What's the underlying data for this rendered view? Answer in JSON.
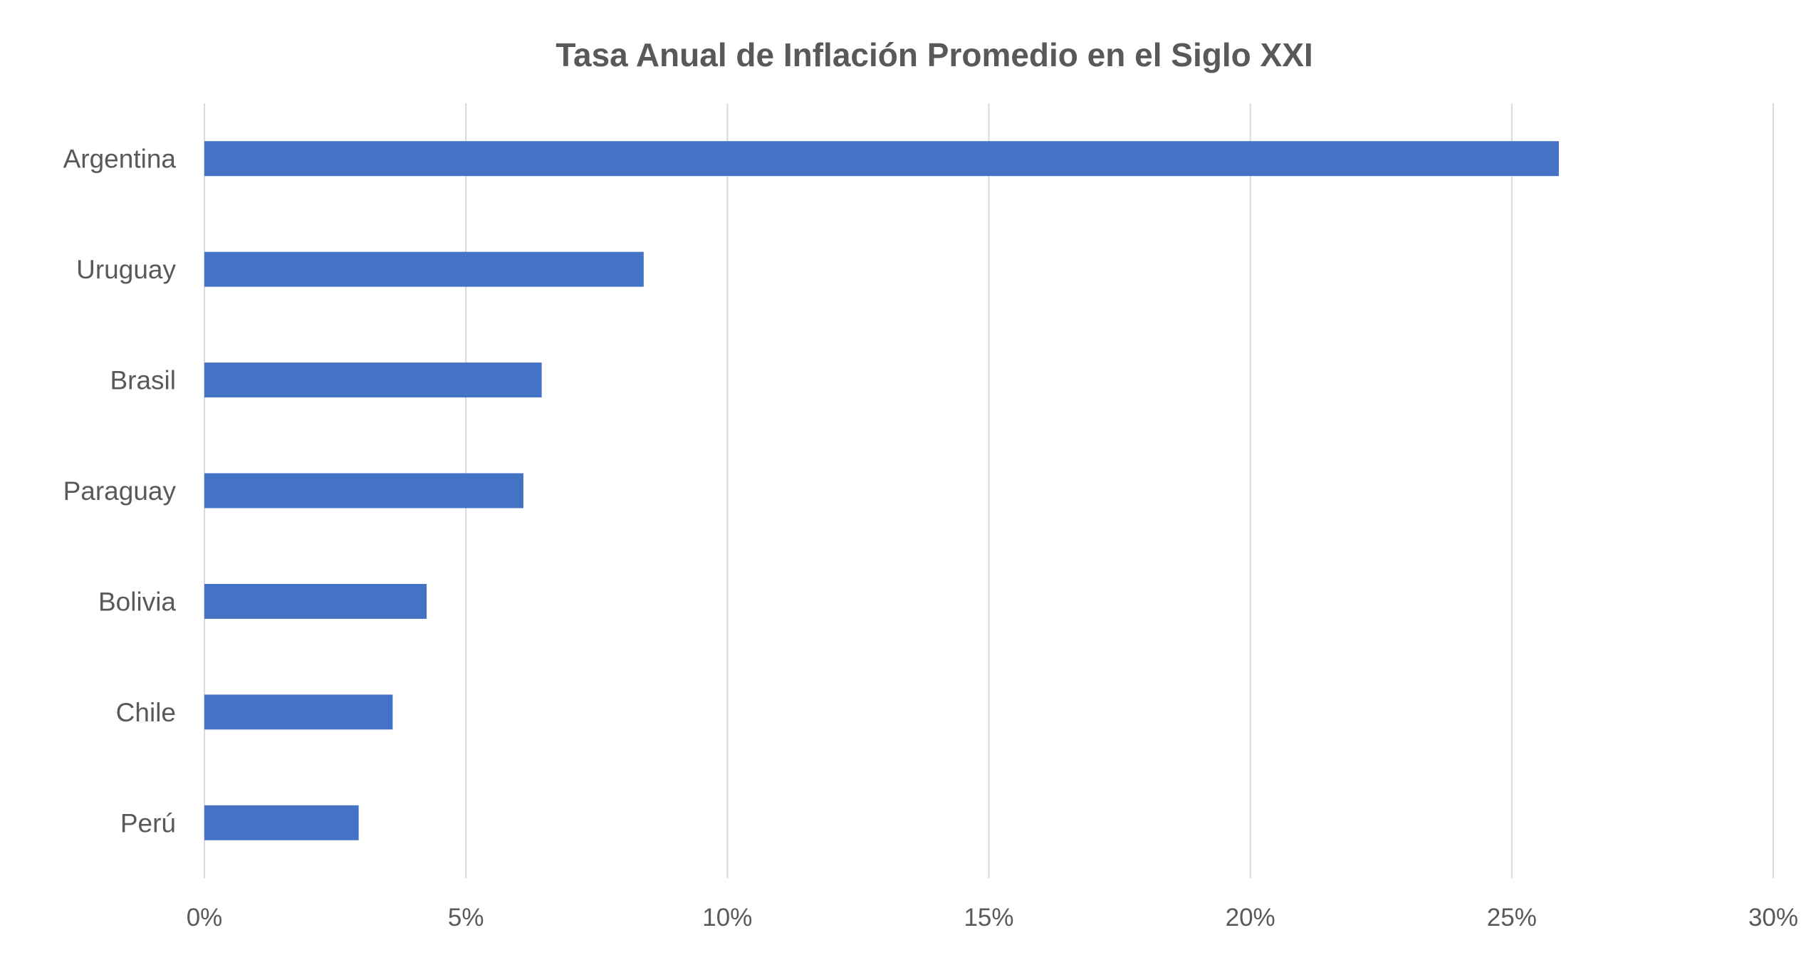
{
  "chart_data": {
    "type": "bar",
    "orientation": "horizontal",
    "title": "Tasa Anual de Inflación Promedio en el Siglo XXI",
    "categories": [
      "Argentina",
      "Uruguay",
      "Brasil",
      "Paraguay",
      "Bolivia",
      "Chile",
      "Perú"
    ],
    "values": [
      25.9,
      8.4,
      6.45,
      6.1,
      4.25,
      3.6,
      2.95
    ],
    "xlim": [
      0,
      30
    ],
    "xticks": [
      0,
      5,
      10,
      15,
      20,
      25,
      30
    ],
    "xtick_labels": [
      "0%",
      "5%",
      "10%",
      "15%",
      "20%",
      "25%",
      "30%"
    ],
    "grid": "vertical",
    "legend": "none",
    "colors": {
      "bar": "#4472C4",
      "text": "#595959",
      "grid": "#D9D9D9"
    }
  }
}
